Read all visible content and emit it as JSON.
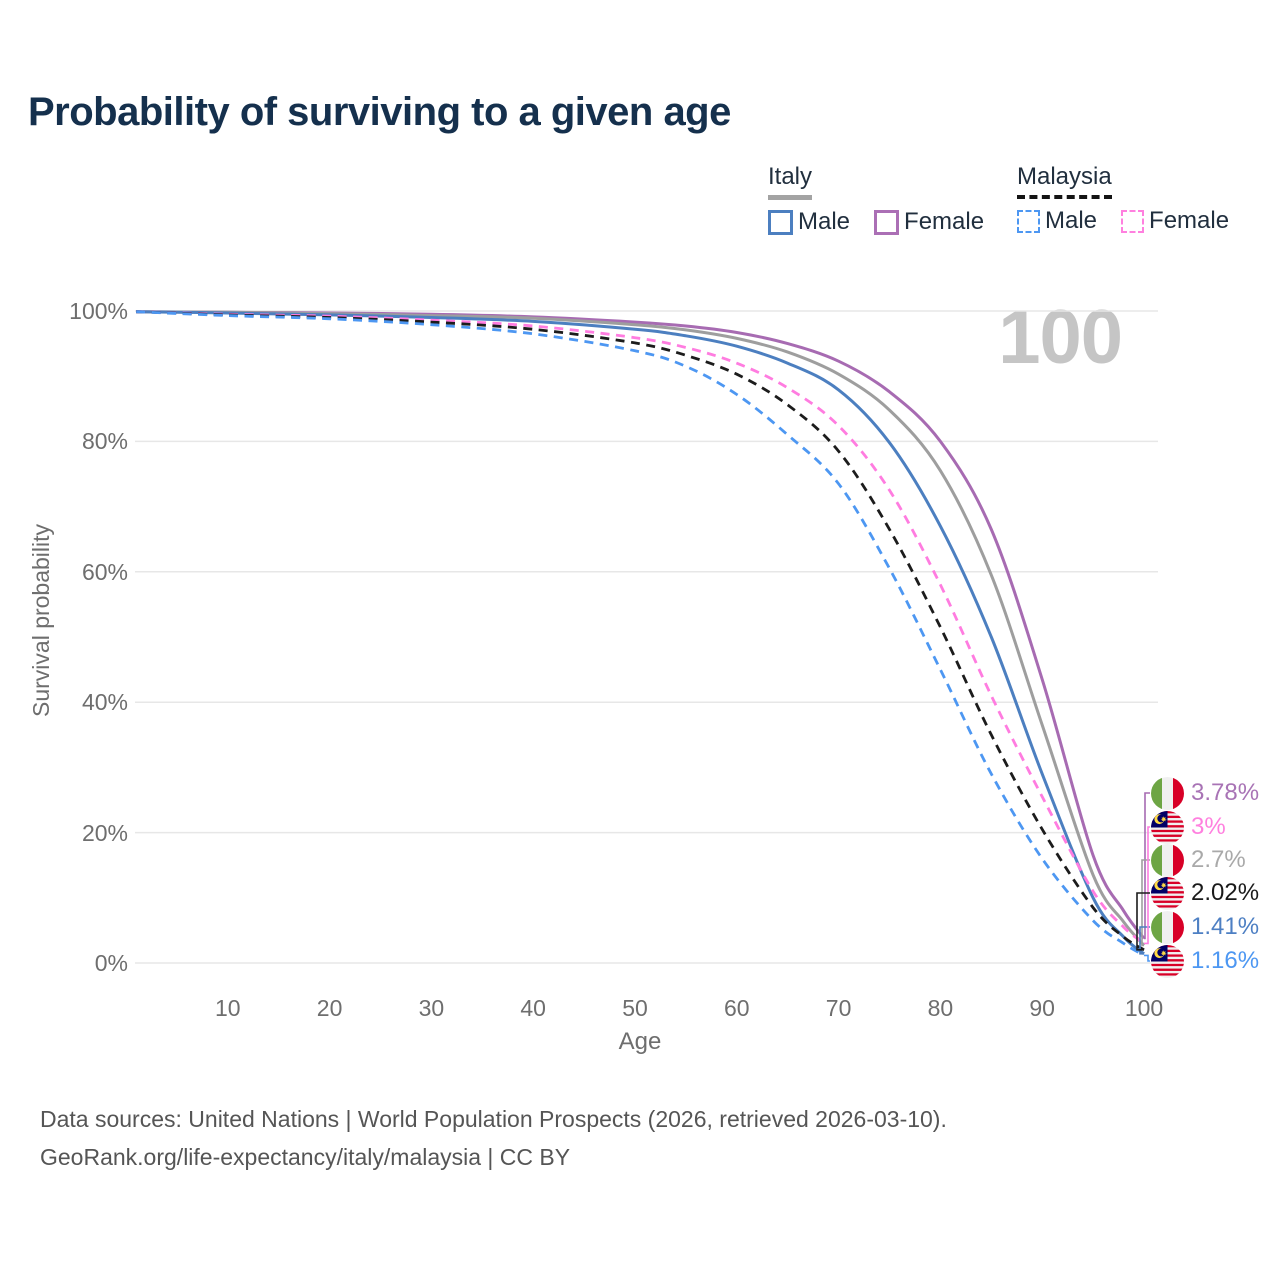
{
  "header": {
    "title": "Probability of surviving to a given age"
  },
  "legend": {
    "groups": [
      {
        "label": "Italy",
        "line_style": "solid",
        "underline_color": "#a3a3a3",
        "items": [
          {
            "label": "Male",
            "color": "#4c7fc0",
            "dashed": false
          },
          {
            "label": "Female",
            "color": "#ab6fb5",
            "dashed": false
          }
        ]
      },
      {
        "label": "Malaysia",
        "line_style": "dashed",
        "underline_color": "#141414",
        "items": [
          {
            "label": "Male",
            "color": "#4d97f2",
            "dashed": true
          },
          {
            "label": "Female",
            "color": "#ff80df",
            "dashed": true
          }
        ]
      }
    ]
  },
  "chart_data": {
    "type": "line",
    "title": "Probability of surviving to a given age",
    "xlabel": "Age",
    "ylabel": "Survival probability",
    "xlim": [
      0,
      100
    ],
    "ylim": [
      0,
      100
    ],
    "grid": "horizontal-only",
    "watermark": "100",
    "x_ticks": [
      10,
      20,
      30,
      40,
      50,
      60,
      70,
      80,
      90,
      100
    ],
    "y_grid": [
      100,
      80,
      60,
      40,
      20,
      0
    ],
    "y_tick_labels": [
      "100%",
      "80%",
      "60%",
      "40%",
      "20%",
      "0%"
    ],
    "series": [
      {
        "name": "Italy Female",
        "country": "Italy",
        "sex": "Female",
        "color": "#a76bb2",
        "dashed": false,
        "row": 0,
        "end_value": "3.78%",
        "points": [
          [
            1,
            99.9
          ],
          [
            10,
            99.8
          ],
          [
            20,
            99.7
          ],
          [
            30,
            99.5
          ],
          [
            40,
            99.1
          ],
          [
            50,
            98.3
          ],
          [
            55,
            97.7
          ],
          [
            60,
            96.7
          ],
          [
            65,
            95.0
          ],
          [
            70,
            92.3
          ],
          [
            75,
            87.6
          ],
          [
            80,
            80.0
          ],
          [
            85,
            66.5
          ],
          [
            90,
            43.5
          ],
          [
            95,
            16.5
          ],
          [
            98,
            8.0
          ],
          [
            100,
            3.78
          ]
        ]
      },
      {
        "name": "Italy Total",
        "country": "Italy",
        "sex": "Both",
        "color": "#9e9e9e",
        "dashed": false,
        "row": 2,
        "end_value": "2.7%",
        "points": [
          [
            1,
            99.9
          ],
          [
            10,
            99.8
          ],
          [
            20,
            99.6
          ],
          [
            30,
            99.3
          ],
          [
            40,
            98.9
          ],
          [
            50,
            97.9
          ],
          [
            55,
            97.1
          ],
          [
            60,
            95.8
          ],
          [
            65,
            93.7
          ],
          [
            70,
            90.3
          ],
          [
            75,
            84.8
          ],
          [
            80,
            75.5
          ],
          [
            85,
            59.5
          ],
          [
            90,
            36.5
          ],
          [
            95,
            13.5
          ],
          [
            98,
            6.3
          ],
          [
            100,
            2.7
          ]
        ]
      },
      {
        "name": "Italy Male",
        "country": "Italy",
        "sex": "Male",
        "color": "#4c7fc0",
        "dashed": false,
        "row": 4,
        "end_value": "1.41%",
        "points": [
          [
            1,
            99.9
          ],
          [
            10,
            99.7
          ],
          [
            20,
            99.4
          ],
          [
            30,
            99.0
          ],
          [
            40,
            98.4
          ],
          [
            50,
            97.2
          ],
          [
            55,
            96.2
          ],
          [
            60,
            94.6
          ],
          [
            65,
            92.0
          ],
          [
            70,
            87.9
          ],
          [
            75,
            79.8
          ],
          [
            80,
            67.0
          ],
          [
            85,
            50.0
          ],
          [
            90,
            29.0
          ],
          [
            95,
            10.0
          ],
          [
            98,
            4.0
          ],
          [
            100,
            1.41
          ]
        ]
      },
      {
        "name": "Malaysia Female",
        "country": "Malaysia",
        "sex": "Female",
        "color": "#ff7ce0",
        "dashed": true,
        "row": 1,
        "end_value": "3%",
        "points": [
          [
            1,
            99.9
          ],
          [
            10,
            99.5
          ],
          [
            20,
            99.2
          ],
          [
            30,
            98.6
          ],
          [
            40,
            97.7
          ],
          [
            50,
            95.9
          ],
          [
            55,
            94.4
          ],
          [
            60,
            92.0
          ],
          [
            65,
            88.2
          ],
          [
            70,
            82.4
          ],
          [
            75,
            72.5
          ],
          [
            80,
            58.0
          ],
          [
            85,
            41.0
          ],
          [
            90,
            25.5
          ],
          [
            95,
            11.0
          ],
          [
            98,
            5.5
          ],
          [
            100,
            3.0
          ]
        ]
      },
      {
        "name": "Malaysia Total",
        "country": "Malaysia",
        "sex": "Both",
        "color": "#1c1c1c",
        "dashed": true,
        "row": 3,
        "end_value": "2.02%",
        "points": [
          [
            1,
            99.9
          ],
          [
            10,
            99.4
          ],
          [
            20,
            99.0
          ],
          [
            30,
            98.3
          ],
          [
            40,
            97.2
          ],
          [
            50,
            95.1
          ],
          [
            55,
            93.2
          ],
          [
            60,
            90.3
          ],
          [
            65,
            85.6
          ],
          [
            70,
            78.5
          ],
          [
            75,
            66.5
          ],
          [
            80,
            51.5
          ],
          [
            85,
            35.0
          ],
          [
            90,
            20.5
          ],
          [
            95,
            8.5
          ],
          [
            98,
            4.0
          ],
          [
            100,
            2.02
          ]
        ]
      },
      {
        "name": "Malaysia Male",
        "country": "Malaysia",
        "sex": "Male",
        "color": "#4d97f2",
        "dashed": true,
        "row": 5,
        "end_value": "1.16%",
        "points": [
          [
            1,
            99.9
          ],
          [
            10,
            99.3
          ],
          [
            20,
            98.8
          ],
          [
            30,
            97.9
          ],
          [
            40,
            96.5
          ],
          [
            50,
            93.9
          ],
          [
            55,
            91.5
          ],
          [
            60,
            87.2
          ],
          [
            65,
            81.0
          ],
          [
            70,
            73.5
          ],
          [
            75,
            60.5
          ],
          [
            80,
            45.0
          ],
          [
            85,
            29.0
          ],
          [
            90,
            16.0
          ],
          [
            95,
            6.5
          ],
          [
            98,
            3.0
          ],
          [
            100,
            1.16
          ]
        ]
      }
    ],
    "end_labels": [
      {
        "value": "3.78%",
        "flag": "italy",
        "color": "#a873b5"
      },
      {
        "value": "3%",
        "flag": "malaysia",
        "color": "#ff80df"
      },
      {
        "value": "2.7%",
        "flag": "italy",
        "color": "#a9a9a9"
      },
      {
        "value": "2.02%",
        "flag": "malaysia",
        "color": "#1a1a1a"
      },
      {
        "value": "1.41%",
        "flag": "italy",
        "color": "#4d7fc3"
      },
      {
        "value": "1.16%",
        "flag": "malaysia",
        "color": "#4d97f2"
      }
    ]
  },
  "footer": {
    "line1": "Data sources: United Nations | World Population Prospects (2026, retrieved 2026-03-10).",
    "line2": "GeoRank.org/life-expectancy/italy/malaysia | CC BY"
  }
}
